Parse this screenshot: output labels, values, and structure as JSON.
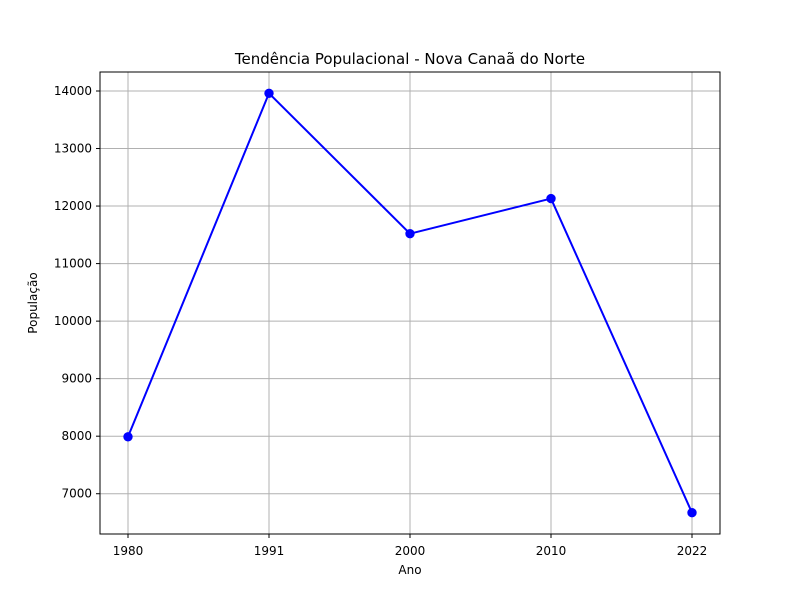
{
  "chart_data": {
    "type": "line",
    "title": "Tendência Populacional - Nova Canaã do Norte",
    "xlabel": "Ano",
    "ylabel": "População",
    "categories": [
      "1980",
      "1991",
      "2000",
      "2010",
      "2022"
    ],
    "series": [
      {
        "values": [
          7990,
          13960,
          11520,
          12130,
          6670
        ],
        "color": "#0000ff",
        "marker": "circle"
      }
    ],
    "yticks": [
      7000,
      8000,
      9000,
      10000,
      11000,
      12000,
      13000,
      14000
    ],
    "ylim": [
      6300,
      14330
    ],
    "grid": true
  }
}
